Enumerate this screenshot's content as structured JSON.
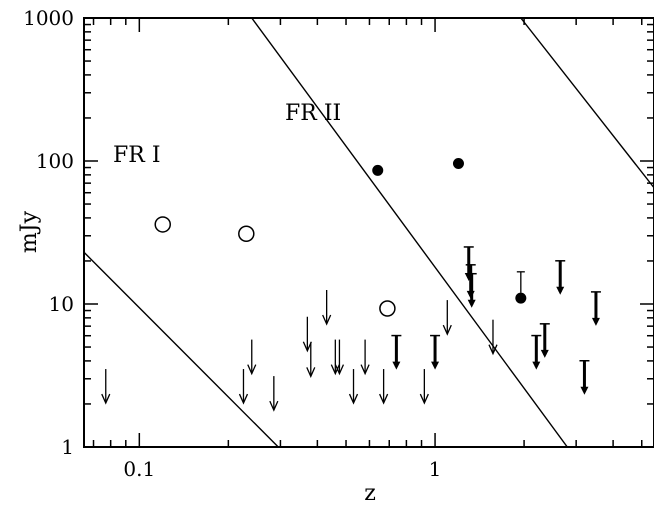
{
  "chart_data": {
    "type": "scatter",
    "title": "",
    "xlabel": "z",
    "ylabel": "mJy",
    "x_scale": "log",
    "y_scale": "log",
    "xlim": [
      0.065,
      5.5
    ],
    "ylim": [
      1,
      1000
    ],
    "x_ticks": [
      {
        "value": 0.1,
        "label": "0.1"
      },
      {
        "value": 1,
        "label": "1"
      }
    ],
    "y_ticks": [
      {
        "value": 1,
        "label": "1"
      },
      {
        "value": 10,
        "label": "10"
      },
      {
        "value": 100,
        "label": "100"
      },
      {
        "value": 1000,
        "label": "1000"
      }
    ],
    "annotations": [
      {
        "text": "FR I",
        "x": 0.075,
        "y": 110
      },
      {
        "text": "FR II",
        "x": 0.38,
        "y": 270
      }
    ],
    "lines": [
      [
        [
          0.065,
          23
        ],
        [
          0.295,
          1
        ]
      ],
      [
        [
          0.24,
          1000
        ],
        [
          2.8,
          1
        ]
      ],
      [
        [
          1.95,
          1000
        ],
        [
          5.5,
          65
        ]
      ]
    ],
    "series": [
      {
        "marker": "open-circle",
        "points": [
          [
            0.12,
            36
          ],
          [
            0.23,
            31
          ],
          [
            0.69,
            9.3
          ]
        ]
      },
      {
        "marker": "filled-circle",
        "points": [
          [
            0.64,
            86
          ],
          [
            1.2,
            96
          ],
          [
            1.95,
            11
          ]
        ]
      },
      {
        "marker": "arrow",
        "points": [
          [
            0.077,
            2.8
          ],
          [
            0.225,
            2.8
          ],
          [
            0.24,
            4.5
          ],
          [
            0.285,
            2.5
          ],
          [
            0.37,
            6.5
          ],
          [
            0.38,
            4.3
          ],
          [
            0.43,
            10
          ],
          [
            0.46,
            4.5
          ],
          [
            0.475,
            4.5
          ],
          [
            0.53,
            2.8
          ],
          [
            0.58,
            4.5
          ],
          [
            0.67,
            2.8
          ],
          [
            0.92,
            2.8
          ],
          [
            1.1,
            8.5
          ],
          [
            1.57,
            6.2
          ]
        ]
      },
      {
        "marker": "bold-arrow",
        "points": [
          [
            0.74,
            4.8
          ],
          [
            1.0,
            4.8
          ],
          [
            1.3,
            20
          ],
          [
            1.32,
            15
          ],
          [
            1.33,
            13
          ],
          [
            2.2,
            4.8
          ],
          [
            2.35,
            5.8
          ],
          [
            2.65,
            16
          ],
          [
            3.2,
            3.2
          ],
          [
            3.5,
            9.7
          ]
        ]
      },
      {
        "marker": "error-bar",
        "points": [
          [
            1.95,
            15
          ]
        ]
      }
    ]
  }
}
